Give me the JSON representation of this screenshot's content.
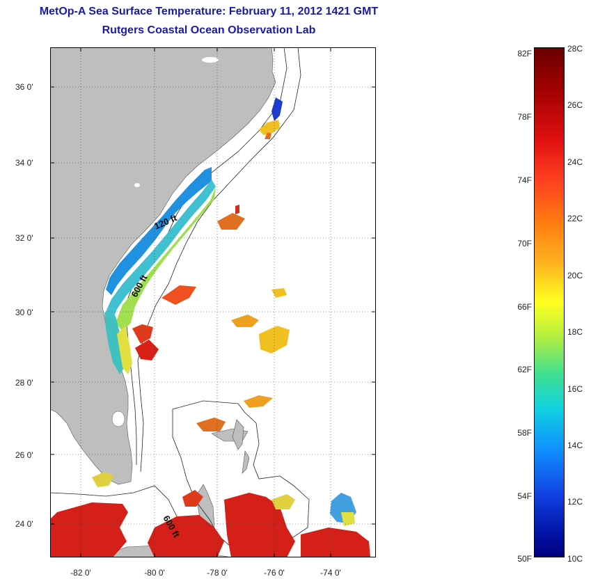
{
  "title": {
    "line1": "MetOp-A Sea Surface Temperature:  February 11, 2012 1421 GMT",
    "line2": "Rutgers Coastal Ocean Observation Lab"
  },
  "axes": {
    "lat_labels": [
      "36 0'",
      "34 0'",
      "32 0'",
      "30 0'",
      "28 0'",
      "26 0'",
      "24 0'"
    ],
    "lon_labels": [
      "-82 0'",
      "-80 0'",
      "-78 0'",
      "-76 0'",
      "-74 0'"
    ]
  },
  "contours": {
    "shallow": "120 ft",
    "deep1": "600 ft",
    "deep2": "600 ft"
  },
  "colorbar": {
    "fahrenheit": [
      "82F",
      "78F",
      "74F",
      "70F",
      "66F",
      "62F",
      "58F",
      "54F",
      "50F"
    ],
    "celsius": [
      "28C",
      "26C",
      "24C",
      "22C",
      "20C",
      "18C",
      "16C",
      "14C",
      "12C",
      "10C"
    ]
  },
  "colors": {
    "land": "#bebebe",
    "title": "#1a1aa8"
  }
}
